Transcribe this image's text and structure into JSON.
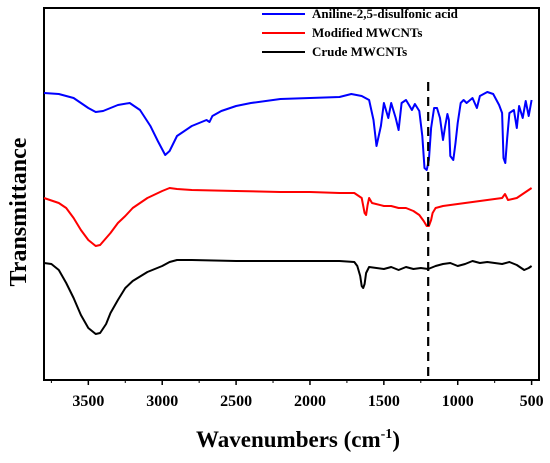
{
  "chart_data": {
    "type": "line",
    "xlabel": "Wavenumbers (cm",
    "xlabel_sup": "-1",
    "xlabel_close": ")",
    "ylabel": "Transmittance",
    "xlim": [
      3800,
      450
    ],
    "x_ticks": [
      "3500",
      "3000",
      "2500",
      "2000",
      "1500",
      "1000",
      "500"
    ],
    "x_tick_values": [
      3500,
      3000,
      2500,
      2000,
      1500,
      1000,
      500
    ],
    "y_axis_ticks": false,
    "legend_position": "top-right",
    "reference_line": {
      "x": 1200,
      "style": "dashed",
      "color": "#000000"
    },
    "series": [
      {
        "name": "Aniline-2,5-disulfonic acid",
        "color": "#0000ff",
        "points": [
          [
            3800,
            85
          ],
          [
            3700,
            86
          ],
          [
            3600,
            90
          ],
          [
            3500,
            100
          ],
          [
            3450,
            104
          ],
          [
            3400,
            103
          ],
          [
            3300,
            97
          ],
          [
            3220,
            95
          ],
          [
            3150,
            102
          ],
          [
            3080,
            118
          ],
          [
            3030,
            133
          ],
          [
            2980,
            147
          ],
          [
            2950,
            143
          ],
          [
            2900,
            128
          ],
          [
            2800,
            118
          ],
          [
            2700,
            112
          ],
          [
            2680,
            114
          ],
          [
            2660,
            108
          ],
          [
            2600,
            103
          ],
          [
            2500,
            98
          ],
          [
            2400,
            95
          ],
          [
            2200,
            91
          ],
          [
            2000,
            90
          ],
          [
            1800,
            89
          ],
          [
            1720,
            86
          ],
          [
            1650,
            88
          ],
          [
            1600,
            92
          ],
          [
            1570,
            112
          ],
          [
            1550,
            138
          ],
          [
            1520,
            118
          ],
          [
            1500,
            95
          ],
          [
            1470,
            110
          ],
          [
            1450,
            95
          ],
          [
            1420,
            110
          ],
          [
            1400,
            122
          ],
          [
            1380,
            95
          ],
          [
            1350,
            92
          ],
          [
            1330,
            97
          ],
          [
            1310,
            102
          ],
          [
            1290,
            96
          ],
          [
            1260,
            103
          ],
          [
            1240,
            128
          ],
          [
            1225,
            160
          ],
          [
            1210,
            162
          ],
          [
            1195,
            152
          ],
          [
            1180,
            120
          ],
          [
            1160,
            100
          ],
          [
            1140,
            100
          ],
          [
            1120,
            110
          ],
          [
            1100,
            132
          ],
          [
            1085,
            118
          ],
          [
            1070,
            106
          ],
          [
            1060,
            112
          ],
          [
            1050,
            148
          ],
          [
            1030,
            152
          ],
          [
            1015,
            135
          ],
          [
            1000,
            115
          ],
          [
            980,
            95
          ],
          [
            960,
            92
          ],
          [
            940,
            95
          ],
          [
            900,
            90
          ],
          [
            870,
            100
          ],
          [
            850,
            88
          ],
          [
            800,
            84
          ],
          [
            760,
            86
          ],
          [
            720,
            97
          ],
          [
            700,
            105
          ],
          [
            690,
            150
          ],
          [
            678,
            155
          ],
          [
            665,
            130
          ],
          [
            650,
            105
          ],
          [
            620,
            102
          ],
          [
            600,
            120
          ],
          [
            585,
            98
          ],
          [
            560,
            110
          ],
          [
            540,
            93
          ],
          [
            520,
            108
          ],
          [
            500,
            92
          ]
        ]
      },
      {
        "name": "Modified MWCNTs",
        "color": "#ff0000",
        "points": [
          [
            3800,
            190
          ],
          [
            3700,
            195
          ],
          [
            3650,
            200
          ],
          [
            3600,
            210
          ],
          [
            3550,
            222
          ],
          [
            3500,
            232
          ],
          [
            3450,
            238
          ],
          [
            3420,
            237
          ],
          [
            3350,
            225
          ],
          [
            3300,
            215
          ],
          [
            3250,
            208
          ],
          [
            3200,
            200
          ],
          [
            3100,
            190
          ],
          [
            3000,
            183
          ],
          [
            2950,
            180
          ],
          [
            2900,
            181
          ],
          [
            2800,
            182
          ],
          [
            2500,
            183
          ],
          [
            2200,
            184
          ],
          [
            2000,
            184
          ],
          [
            1800,
            185
          ],
          [
            1700,
            185
          ],
          [
            1650,
            190
          ],
          [
            1630,
            205
          ],
          [
            1620,
            207
          ],
          [
            1610,
            197
          ],
          [
            1600,
            190
          ],
          [
            1580,
            195
          ],
          [
            1500,
            198
          ],
          [
            1450,
            198
          ],
          [
            1400,
            200
          ],
          [
            1350,
            200
          ],
          [
            1300,
            203
          ],
          [
            1260,
            207
          ],
          [
            1230,
            213
          ],
          [
            1210,
            218
          ],
          [
            1195,
            218
          ],
          [
            1180,
            212
          ],
          [
            1170,
            205
          ],
          [
            1150,
            200
          ],
          [
            1100,
            198
          ],
          [
            1000,
            196
          ],
          [
            900,
            194
          ],
          [
            800,
            192
          ],
          [
            700,
            190
          ],
          [
            680,
            186
          ],
          [
            660,
            192
          ],
          [
            600,
            190
          ],
          [
            550,
            185
          ],
          [
            500,
            180
          ]
        ]
      },
      {
        "name": "Crude MWCNTs",
        "color": "#000000",
        "points": [
          [
            3800,
            255
          ],
          [
            3750,
            256
          ],
          [
            3700,
            262
          ],
          [
            3650,
            275
          ],
          [
            3600,
            290
          ],
          [
            3550,
            307
          ],
          [
            3500,
            320
          ],
          [
            3450,
            326
          ],
          [
            3420,
            325
          ],
          [
            3380,
            316
          ],
          [
            3350,
            305
          ],
          [
            3300,
            292
          ],
          [
            3250,
            280
          ],
          [
            3200,
            273
          ],
          [
            3100,
            264
          ],
          [
            3000,
            258
          ],
          [
            2950,
            254
          ],
          [
            2900,
            252
          ],
          [
            2800,
            252
          ],
          [
            2500,
            253
          ],
          [
            2200,
            253
          ],
          [
            2000,
            253
          ],
          [
            1800,
            253
          ],
          [
            1700,
            254
          ],
          [
            1680,
            258
          ],
          [
            1660,
            268
          ],
          [
            1650,
            278
          ],
          [
            1640,
            280
          ],
          [
            1630,
            276
          ],
          [
            1620,
            265
          ],
          [
            1600,
            259
          ],
          [
            1500,
            261
          ],
          [
            1450,
            259
          ],
          [
            1400,
            262
          ],
          [
            1350,
            259
          ],
          [
            1300,
            261
          ],
          [
            1250,
            260
          ],
          [
            1200,
            261
          ],
          [
            1150,
            258
          ],
          [
            1100,
            256
          ],
          [
            1050,
            255
          ],
          [
            1000,
            258
          ],
          [
            950,
            256
          ],
          [
            900,
            253
          ],
          [
            850,
            255
          ],
          [
            800,
            254
          ],
          [
            750,
            255
          ],
          [
            700,
            256
          ],
          [
            650,
            254
          ],
          [
            600,
            257
          ],
          [
            550,
            262
          ],
          [
            520,
            260
          ],
          [
            500,
            258
          ]
        ]
      }
    ]
  }
}
